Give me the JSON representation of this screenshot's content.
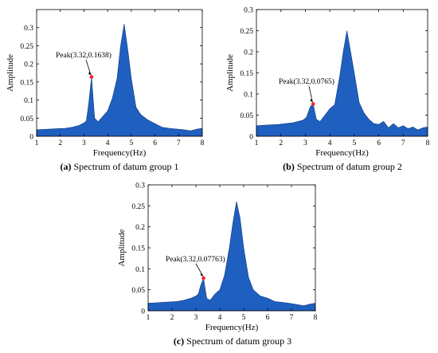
{
  "chart_data": [
    {
      "type": "area",
      "caption_letter": "(a)",
      "caption_text": " Spectrum of datum group 1",
      "xlabel": "Frequency(Hz)",
      "ylabel": "Amplitude",
      "xlim": [
        1,
        8
      ],
      "ylim": [
        0,
        0.35
      ],
      "xticks": [
        "1",
        "2",
        "3",
        "4",
        "5",
        "6",
        "7",
        "8"
      ],
      "yticks": [
        "0",
        "0.05",
        "0.1",
        "0.15",
        "0.2",
        "0.25",
        "0.3"
      ],
      "fill_color": "#1f5fbf",
      "marker_color": "#ff2020",
      "peak": {
        "x": 3.32,
        "y": 0.1638,
        "label": "Peak(3.32,0.1638)"
      },
      "x": [
        1,
        1.3,
        1.6,
        1.9,
        2.2,
        2.5,
        2.8,
        3.0,
        3.1,
        3.2,
        3.32,
        3.45,
        3.6,
        3.8,
        4.0,
        4.2,
        4.4,
        4.55,
        4.7,
        4.85,
        5.0,
        5.2,
        5.4,
        5.7,
        6.0,
        6.3,
        6.6,
        6.9,
        7.2,
        7.5,
        7.8,
        8.0
      ],
      "y": [
        0.018,
        0.019,
        0.02,
        0.021,
        0.022,
        0.025,
        0.03,
        0.037,
        0.042,
        0.09,
        0.1638,
        0.05,
        0.04,
        0.055,
        0.07,
        0.105,
        0.16,
        0.25,
        0.31,
        0.24,
        0.16,
        0.08,
        0.06,
        0.045,
        0.035,
        0.025,
        0.022,
        0.02,
        0.018,
        0.015,
        0.02,
        0.022
      ]
    },
    {
      "type": "area",
      "caption_letter": "(b)",
      "caption_text": " Spectrum of datum group 2",
      "xlabel": "Frequency(Hz)",
      "ylabel": "Amplitude",
      "xlim": [
        1,
        8
      ],
      "ylim": [
        0,
        0.3
      ],
      "xticks": [
        "1",
        "2",
        "3",
        "4",
        "5",
        "6",
        "7",
        "8"
      ],
      "yticks": [
        "0",
        "0.05",
        "0.1",
        "0.15",
        "0.2",
        "0.25",
        "0.3"
      ],
      "fill_color": "#1f5fbf",
      "marker_color": "#ff2020",
      "peak": {
        "x": 3.32,
        "y": 0.0765,
        "label": "Peak(3.32,0.0765)"
      },
      "x": [
        1,
        1.3,
        1.6,
        1.9,
        2.2,
        2.5,
        2.7,
        2.9,
        3.05,
        3.2,
        3.32,
        3.45,
        3.6,
        3.8,
        4.0,
        4.2,
        4.4,
        4.55,
        4.7,
        4.85,
        5.0,
        5.2,
        5.4,
        5.6,
        5.8,
        6.0,
        6.2,
        6.4,
        6.6,
        6.8,
        7.0,
        7.2,
        7.4,
        7.6,
        7.8,
        8.0
      ],
      "y": [
        0.025,
        0.026,
        0.027,
        0.028,
        0.03,
        0.032,
        0.035,
        0.038,
        0.045,
        0.07,
        0.0765,
        0.04,
        0.035,
        0.05,
        0.065,
        0.075,
        0.14,
        0.2,
        0.25,
        0.2,
        0.15,
        0.08,
        0.055,
        0.04,
        0.03,
        0.028,
        0.035,
        0.02,
        0.03,
        0.02,
        0.025,
        0.018,
        0.022,
        0.015,
        0.02,
        0.022
      ]
    },
    {
      "type": "area",
      "caption_letter": "(c)",
      "caption_text": " Spectrum of datum group 3",
      "xlabel": "Frequency(Hz)",
      "ylabel": "Amplitude",
      "xlim": [
        1,
        8
      ],
      "ylim": [
        0,
        0.3
      ],
      "xticks": [
        "1",
        "2",
        "3",
        "4",
        "5",
        "6",
        "7",
        "8"
      ],
      "yticks": [
        "0",
        "0.05",
        "0.1",
        "0.15",
        "0.2",
        "0.25",
        "0.3"
      ],
      "fill_color": "#1f5fbf",
      "marker_color": "#ff2020",
      "peak": {
        "x": 3.32,
        "y": 0.07763,
        "label": "Peak(3.32,0.07763)"
      },
      "x": [
        1,
        1.3,
        1.6,
        1.9,
        2.2,
        2.5,
        2.8,
        3.0,
        3.1,
        3.2,
        3.32,
        3.45,
        3.6,
        3.8,
        4.0,
        4.2,
        4.4,
        4.55,
        4.7,
        4.85,
        5.0,
        5.2,
        5.4,
        5.7,
        6.0,
        6.3,
        6.6,
        6.9,
        7.2,
        7.5,
        7.8,
        8.0
      ],
      "y": [
        0.018,
        0.019,
        0.02,
        0.021,
        0.022,
        0.025,
        0.03,
        0.035,
        0.04,
        0.06,
        0.07763,
        0.03,
        0.025,
        0.04,
        0.05,
        0.085,
        0.15,
        0.21,
        0.26,
        0.22,
        0.15,
        0.08,
        0.05,
        0.035,
        0.03,
        0.022,
        0.02,
        0.018,
        0.015,
        0.012,
        0.016,
        0.018
      ]
    }
  ]
}
